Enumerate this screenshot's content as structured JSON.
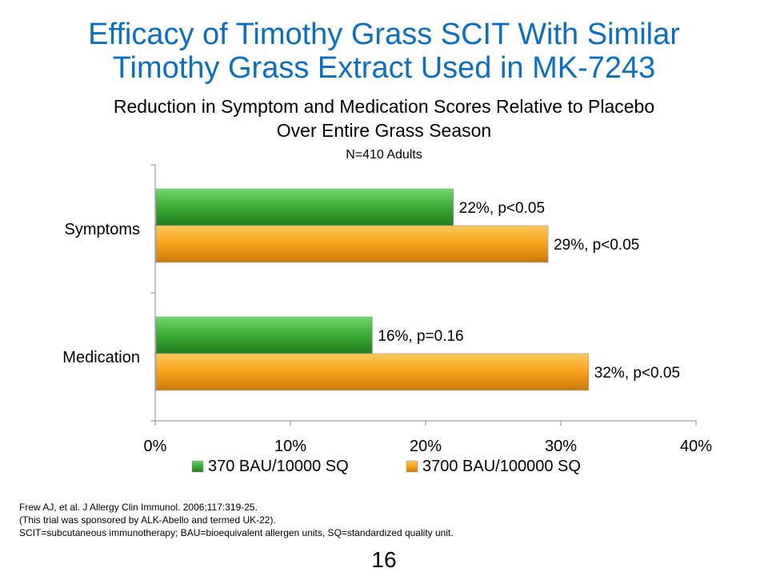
{
  "slide": {
    "title_line1": "Efficacy of Timothy Grass SCIT With Similar",
    "title_line2": "Timothy Grass Extract Used in MK-7243",
    "subtitle_line1": "Reduction in Symptom and Medication Scores Relative to Placebo",
    "subtitle_line2": "Over Entire Grass Season",
    "n_label": "N=410 Adults",
    "footnotes": [
      "Frew AJ, et al. J Allergy Clin Immunol.  2006;117:319-25.",
      "(This trial was sponsored by ALK-Abello and termed UK-22).",
      "SCIT=subcutaneous  immunotherapy;  BAU=bioequivalent allergen units, SQ=standardized quality unit."
    ],
    "slide_number": "16"
  },
  "colors": {
    "title": "#0a6fc2",
    "series_green": "#3aab35",
    "series_orange": "#f7a21b"
  },
  "chart_data": {
    "type": "bar",
    "orientation": "horizontal",
    "categories": [
      "Symptoms",
      "Medication"
    ],
    "series": [
      {
        "name": "370 BAU/10000 SQ",
        "values": [
          22,
          16
        ],
        "labels": [
          "22%, p<0.05",
          "16%, p=0.16"
        ],
        "color": "#3aab35"
      },
      {
        "name": "3700 BAU/100000 SQ",
        "values": [
          29,
          32
        ],
        "labels": [
          "29%, p<0.05",
          "32%, p<0.05"
        ],
        "color": "#f7a21b"
      }
    ],
    "xlim": [
      0,
      40
    ],
    "xticks": [
      "0%",
      "10%",
      "20%",
      "30%",
      "40%"
    ],
    "xlabel": "",
    "ylabel": "",
    "grid": false,
    "legend_position": "bottom"
  }
}
